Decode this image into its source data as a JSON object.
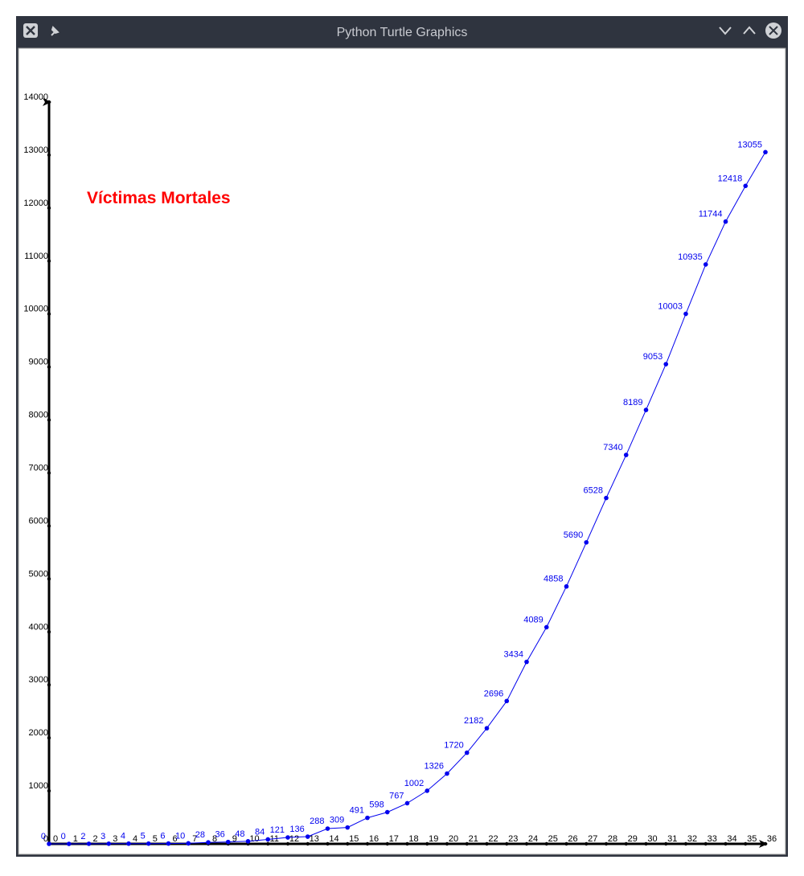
{
  "window": {
    "title": "Python Turtle Graphics"
  },
  "chart_data": {
    "type": "line",
    "title": "Víctimas Mortales",
    "color": "#0000ee",
    "title_color": "#ff0000",
    "x": [
      0,
      1,
      2,
      3,
      4,
      5,
      6,
      7,
      8,
      9,
      10,
      11,
      12,
      13,
      14,
      15,
      16,
      17,
      18,
      19,
      20,
      21,
      22,
      23,
      24,
      25,
      26,
      27,
      28,
      29,
      30,
      31,
      32,
      33,
      34,
      35,
      36
    ],
    "values": [
      0,
      0,
      2,
      3,
      4,
      5,
      6,
      10,
      28,
      36,
      48,
      84,
      121,
      136,
      288,
      309,
      491,
      598,
      767,
      1002,
      1326,
      1720,
      2182,
      2696,
      3434,
      4089,
      4858,
      5690,
      6528,
      7340,
      8189,
      9053,
      10003,
      10935,
      11744,
      12418,
      13055
    ],
    "xlim": [
      0,
      36
    ],
    "xticks": [
      0,
      1,
      2,
      3,
      4,
      5,
      6,
      7,
      8,
      9,
      10,
      11,
      12,
      13,
      14,
      15,
      16,
      17,
      18,
      19,
      20,
      21,
      22,
      23,
      24,
      25,
      26,
      27,
      28,
      29,
      30,
      31,
      32,
      33,
      34,
      35,
      36
    ],
    "ylim": [
      0,
      14000
    ],
    "yticks": [
      0,
      1000,
      2000,
      3000,
      4000,
      5000,
      6000,
      7000,
      8000,
      9000,
      10000,
      11000,
      12000,
      13000,
      14000
    ]
  }
}
